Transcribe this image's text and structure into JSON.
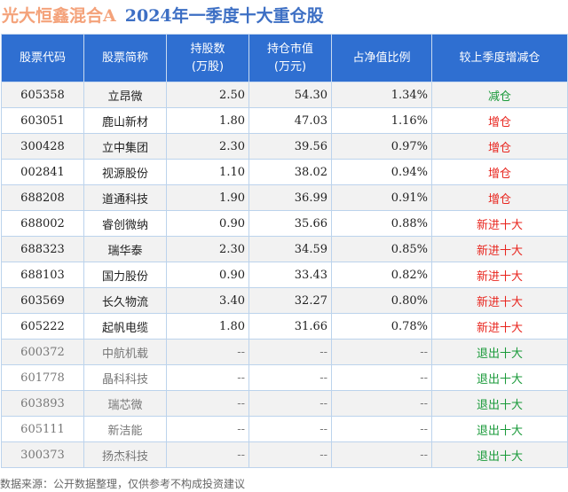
{
  "title": {
    "fund": "光大恒鑫混合A",
    "subject": "2024年一季度十大重仓股"
  },
  "headers": [
    "股票代码",
    "股票简称",
    "持股数\n(万股)",
    "持仓市值\n(万元)",
    "占净值比例",
    "较上季度增减仓"
  ],
  "colors": {
    "header_bg": "#2f6fd1",
    "increase": "#e8251e",
    "decrease": "#1a9a3a"
  },
  "rows": [
    {
      "code": "605358",
      "name": "立昂微",
      "shares": "2.50",
      "value": "54.30",
      "ratio": "1.34%",
      "change": "减仓",
      "color": "green"
    },
    {
      "code": "603051",
      "name": "鹿山新材",
      "shares": "1.80",
      "value": "47.03",
      "ratio": "1.16%",
      "change": "增仓",
      "color": "red"
    },
    {
      "code": "300428",
      "name": "立中集团",
      "shares": "2.30",
      "value": "39.56",
      "ratio": "0.97%",
      "change": "增仓",
      "color": "red"
    },
    {
      "code": "002841",
      "name": "视源股份",
      "shares": "1.10",
      "value": "38.02",
      "ratio": "0.94%",
      "change": "增仓",
      "color": "red"
    },
    {
      "code": "688208",
      "name": "道通科技",
      "shares": "1.90",
      "value": "36.99",
      "ratio": "0.91%",
      "change": "增仓",
      "color": "red"
    },
    {
      "code": "688002",
      "name": "睿创微纳",
      "shares": "0.90",
      "value": "35.66",
      "ratio": "0.88%",
      "change": "新进十大",
      "color": "red"
    },
    {
      "code": "688323",
      "name": "瑞华泰",
      "shares": "2.30",
      "value": "34.59",
      "ratio": "0.85%",
      "change": "新进十大",
      "color": "red"
    },
    {
      "code": "688103",
      "name": "国力股份",
      "shares": "0.90",
      "value": "33.43",
      "ratio": "0.82%",
      "change": "新进十大",
      "color": "red"
    },
    {
      "code": "603569",
      "name": "长久物流",
      "shares": "3.40",
      "value": "32.27",
      "ratio": "0.80%",
      "change": "新进十大",
      "color": "red"
    },
    {
      "code": "605222",
      "name": "起帆电缆",
      "shares": "1.80",
      "value": "31.66",
      "ratio": "0.78%",
      "change": "新进十大",
      "color": "red"
    },
    {
      "code": "600372",
      "name": "中航机载",
      "shares": "--",
      "value": "--",
      "ratio": "--",
      "change": "退出十大",
      "color": "exit"
    },
    {
      "code": "601778",
      "name": "晶科科技",
      "shares": "--",
      "value": "--",
      "ratio": "--",
      "change": "退出十大",
      "color": "exit"
    },
    {
      "code": "603893",
      "name": "瑞芯微",
      "shares": "--",
      "value": "--",
      "ratio": "--",
      "change": "退出十大",
      "color": "exit"
    },
    {
      "code": "605111",
      "name": "新洁能",
      "shares": "--",
      "value": "--",
      "ratio": "--",
      "change": "退出十大",
      "color": "exit"
    },
    {
      "code": "300373",
      "name": "扬杰科技",
      "shares": "--",
      "value": "--",
      "ratio": "--",
      "change": "退出十大",
      "color": "exit"
    }
  ],
  "footer": "数据来源：公开数据整理，仅供参考不构成投资建议"
}
